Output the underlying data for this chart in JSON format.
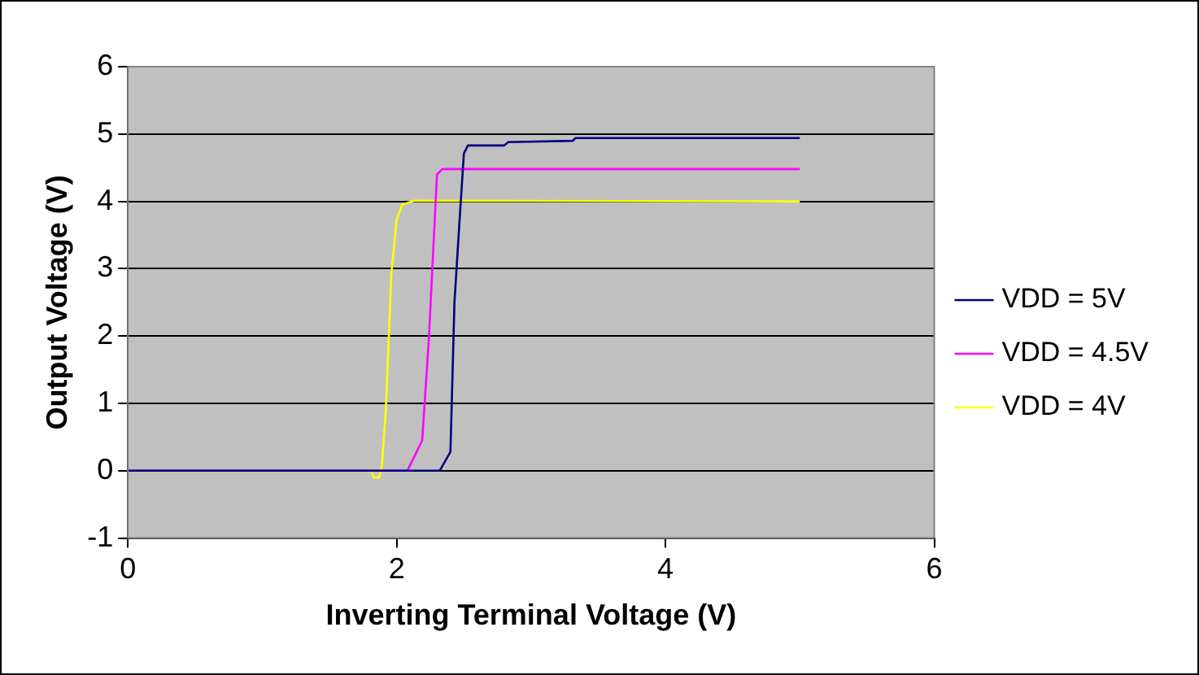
{
  "chart_data": {
    "type": "line",
    "xlabel": "Inverting Terminal Voltage (V)",
    "ylabel": "Output Voltage (V)",
    "xlim": [
      0,
      6
    ],
    "xticks": [
      0,
      2,
      4,
      6
    ],
    "ylim": [
      -1,
      6
    ],
    "yticks": [
      -1,
      0,
      1,
      2,
      3,
      4,
      5,
      6
    ],
    "grid": "y",
    "legend": "right",
    "marker": "none",
    "line_style": "solid",
    "series": [
      {
        "name": "VDD = 5V",
        "color": "#000080",
        "x": [
          0,
          2.32,
          2.4,
          2.43,
          2.47,
          2.5,
          2.53,
          2.8,
          2.83,
          3.31,
          3.33,
          5
        ],
        "values": [
          0,
          0,
          0.28,
          2.5,
          3.78,
          4.71,
          4.83,
          4.83,
          4.88,
          4.9,
          4.94,
          4.94
        ]
      },
      {
        "name": "VDD = 4.5V",
        "color": "#ff00ff",
        "x": [
          0,
          2.08,
          2.19,
          2.24,
          2.28,
          2.3,
          2.34,
          5
        ],
        "values": [
          0,
          0,
          0.45,
          1.97,
          3.59,
          4.4,
          4.48,
          4.48
        ]
      },
      {
        "name": "VDD = 4V",
        "color": "#ffff00",
        "x": [
          0,
          1.81,
          1.83,
          1.87,
          1.89,
          1.92,
          1.96,
          2,
          2.04,
          2.13,
          5
        ],
        "values": [
          0,
          0,
          -0.1,
          -0.1,
          0.07,
          0.92,
          2.92,
          3.73,
          3.95,
          4.01,
          4
        ]
      }
    ]
  }
}
